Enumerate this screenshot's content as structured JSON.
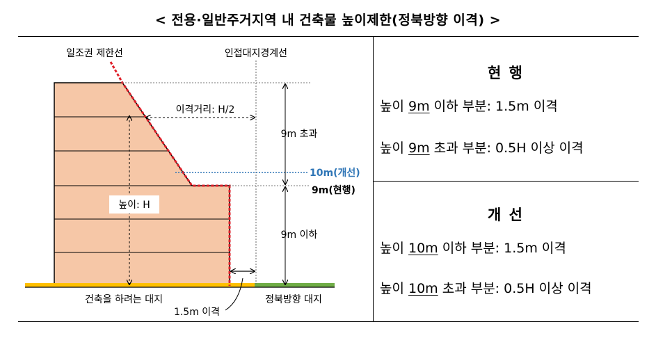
{
  "title": "< 전용·일반주거지역 내 건축물 높이제한(정북방향 이격) >",
  "diagram": {
    "daylight_limit_line": "일조권 제한선",
    "adjacent_boundary": "인접대지경계선",
    "setback_distance": "이격거리: H/2",
    "over_9m": "9m 초과",
    "improved_10m": "10m(개선)",
    "current_9m": "9m(현행)",
    "height_h": "높이: H",
    "under_9m": "9m 이하",
    "building_site": "건축을 하려는 대지",
    "north_site": "정북방향 대지",
    "setback_15m": "1.5m 이격"
  },
  "current": {
    "heading": "현 행",
    "line1": {
      "pre": "높이 ",
      "u": "9m",
      "post": " 이하 부분: 1.5m 이격"
    },
    "line2": {
      "pre": "높이 ",
      "u": "9m",
      "post": " 초과 부분: 0.5H 이상 이격"
    }
  },
  "improved": {
    "heading": "개 선",
    "line1": {
      "pre": "높이 ",
      "u": "10m",
      "post": " 이하 부분: 1.5m 이격"
    },
    "line2": {
      "pre": "높이 ",
      "u": "10m",
      "post": " 초과 부분: 0.5H 이상 이격"
    }
  },
  "colors": {
    "building_fill": "#f6c7a7",
    "building_stroke": "#000000",
    "limit_line": "#e0212b",
    "improved_line": "#2e75b6",
    "site_ground": "#ffc000",
    "north_ground": "#70ad47"
  }
}
